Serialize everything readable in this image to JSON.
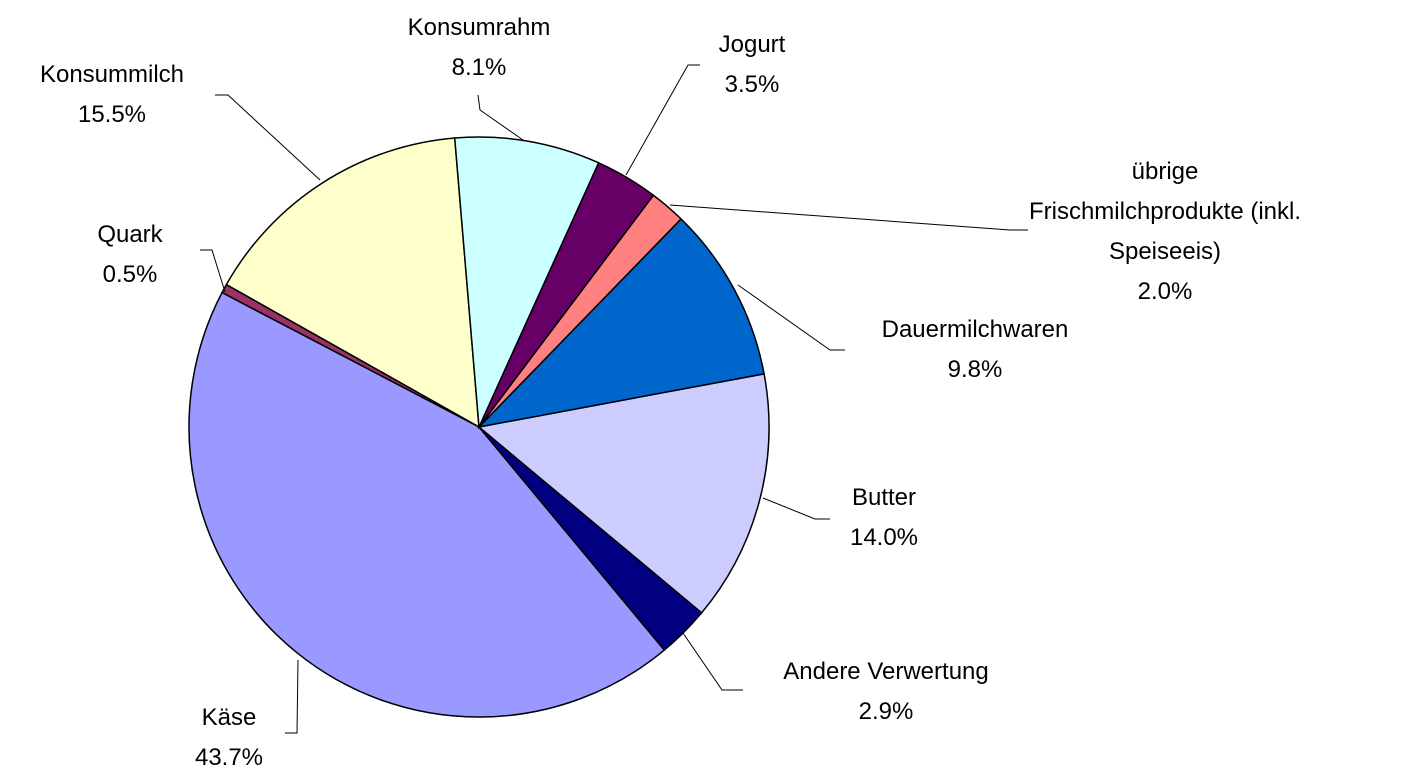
{
  "chart_data": {
    "type": "pie",
    "categories": [
      "Konsumrahm",
      "Jogurt",
      "übrige Frischmilchprodukte (inkl. Speiseeis)",
      "Dauermilchwaren",
      "Butter",
      "Andere Verwertung",
      "Käse",
      "Quark",
      "Konsummilch"
    ],
    "values": [
      8.1,
      3.5,
      2.0,
      9.8,
      14.0,
      2.9,
      43.7,
      0.5,
      15.5
    ],
    "value_labels": [
      "8.1%",
      "3.5%",
      "2.0%",
      "9.8%",
      "14.0%",
      "2.9%",
      "43.7%",
      "0.5%",
      "15.5%"
    ],
    "colors": [
      "#CCFFFF",
      "#660066",
      "#FF8080",
      "#0066CC",
      "#CCCCFF",
      "#000080",
      "#9999FF",
      "#993366",
      "#FFFFCC"
    ]
  }
}
